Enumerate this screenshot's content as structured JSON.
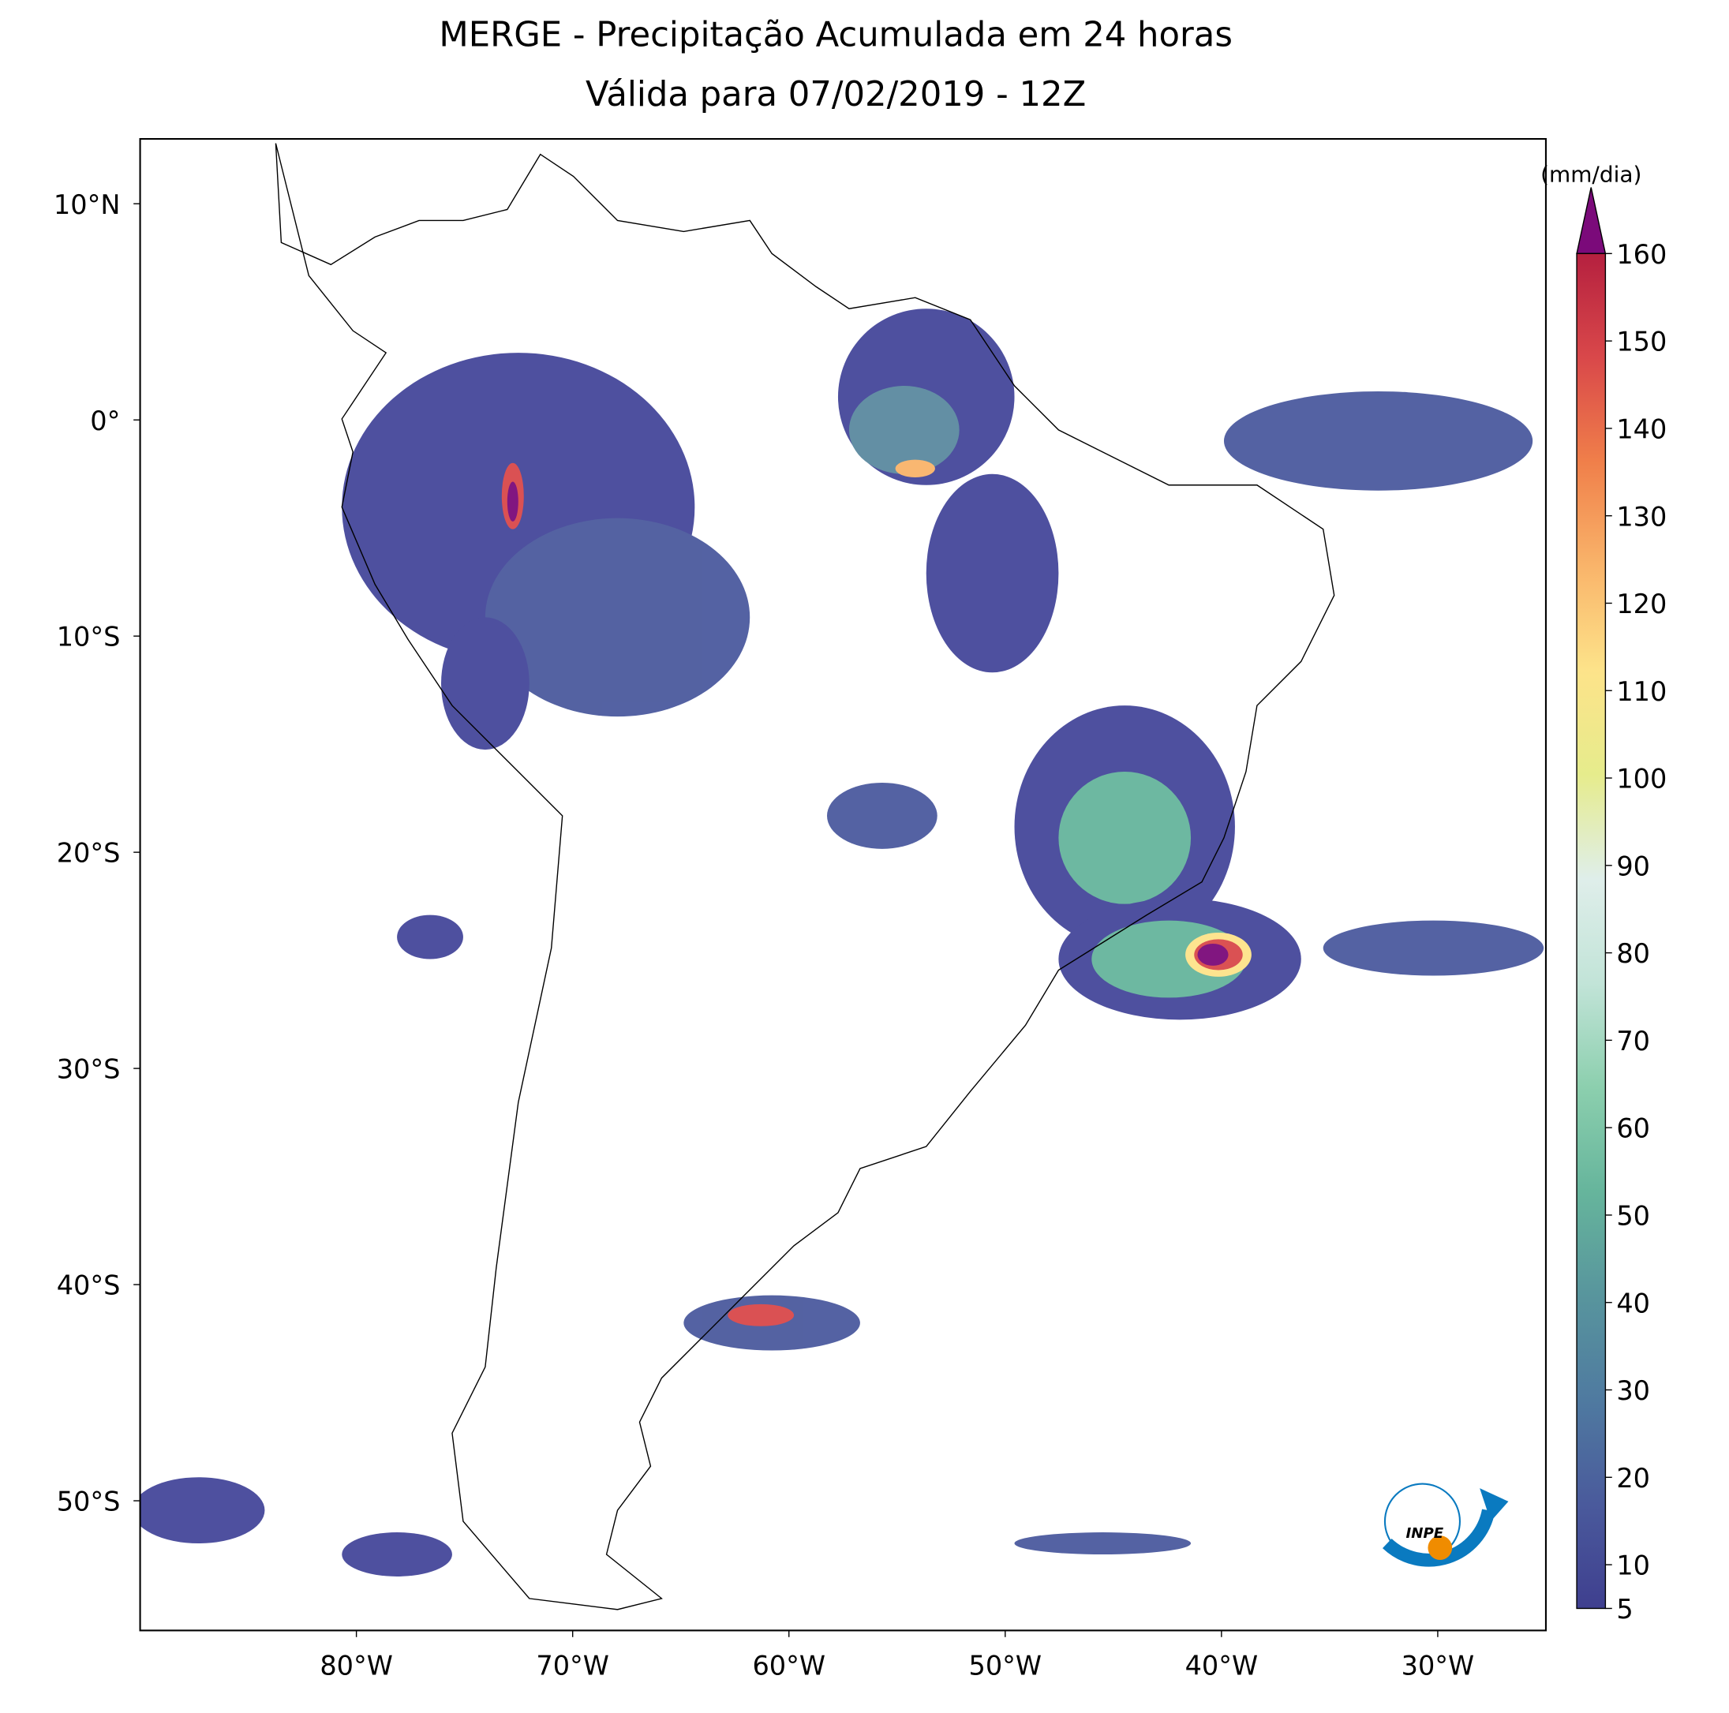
{
  "map": {
    "title": "MERGE - Precipitação Acumulada em 24 horas",
    "subtitle": "Válida para 07/02/2019 - 12Z",
    "xlim": [
      -90,
      -25
    ],
    "ylim": [
      -56,
      13
    ],
    "xticks": [
      {
        "value": -80,
        "label": "80°W"
      },
      {
        "value": -70,
        "label": "70°W"
      },
      {
        "value": -60,
        "label": "60°W"
      },
      {
        "value": -50,
        "label": "50°W"
      },
      {
        "value": -40,
        "label": "40°W"
      },
      {
        "value": -30,
        "label": "30°W"
      }
    ],
    "yticks": [
      {
        "value": 10,
        "label": "10°N"
      },
      {
        "value": 0,
        "label": "0°"
      },
      {
        "value": -10,
        "label": "10°S"
      },
      {
        "value": -20,
        "label": "20°S"
      },
      {
        "value": -30,
        "label": "30°S"
      },
      {
        "value": -40,
        "label": "40°S"
      },
      {
        "value": -50,
        "label": "50°S"
      }
    ],
    "colorbar": {
      "label": "(mm/dia)",
      "lim": [
        5,
        160
      ],
      "ticks": [
        5,
        10,
        20,
        30,
        40,
        50,
        60,
        70,
        80,
        90,
        100,
        110,
        120,
        130,
        140,
        150,
        160
      ],
      "colors": [
        "#3f3f8f",
        "#4a5a9c",
        "#4f7aa0",
        "#58959d",
        "#66b59c",
        "#8ccfae",
        "#c2e4d8",
        "#dfeeea",
        "#e6ec8c",
        "#fde38a",
        "#f9b46a",
        "#f07f4a",
        "#d9484a",
        "#b5203f"
      ],
      "extend_color": "#7b0a7a"
    }
  }
}
